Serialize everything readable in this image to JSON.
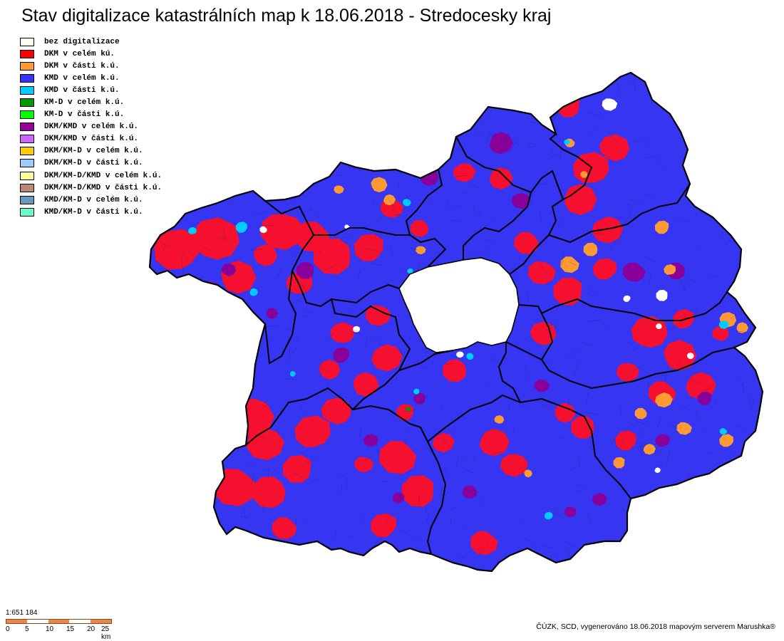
{
  "title": "Stav digitalizace katastrálních map k 18.06.2018 - Stredocesky kraj",
  "legend": [
    {
      "label": "bez digitalizace",
      "color": "#FFFFF0"
    },
    {
      "label": "DKM v celém kú.",
      "color": "#FF0000"
    },
    {
      "label": "DKM v části k.ú.",
      "color": "#FF9933"
    },
    {
      "label": "KMD v celém k.ú.",
      "color": "#3333FF"
    },
    {
      "label": "KMD v části k.ú.",
      "color": "#00CCFF"
    },
    {
      "label": "KM-D v celém k.ú.",
      "color": "#009900"
    },
    {
      "label": "KM-D v části k.ú.",
      "color": "#00FF00"
    },
    {
      "label": "DKM/KMD v celém k.ú.",
      "color": "#990099"
    },
    {
      "label": "DKM/KMD v části k.ú.",
      "color": "#CC66FF"
    },
    {
      "label": "DKM/KM-D v celém k.ú.",
      "color": "#FFCC00"
    },
    {
      "label": "DKM/KM-D v části k.ú.",
      "color": "#99CCFF"
    },
    {
      "label": "DKM/KM-D/KMD v celém k.ú.",
      "color": "#FFFF99"
    },
    {
      "label": "DKM/KM-D/KMD v části k.ú.",
      "color": "#BB8877"
    },
    {
      "label": "KMD/KM-D v celém k.ú.",
      "color": "#6699BB"
    },
    {
      "label": "KMD/KM-D v části k.ú.",
      "color": "#66FFCC"
    }
  ],
  "scale": {
    "ratio": "1:651 184",
    "ticks": [
      "0",
      "5",
      "10",
      "15",
      "20",
      "25 km"
    ],
    "colors": [
      "#E8874A",
      "#FFFFFF"
    ]
  },
  "credit": "ČÚZK, SCD, vygenerováno 18.06.2018 mapovým serverem Marushka®",
  "map_colors": {
    "base": "#3535F2",
    "dkm": "#F5102F",
    "partial_dkm": "#FF9933",
    "mixed": "#880099",
    "kmd_partial": "#00CCFF",
    "none": "#FFFFFF",
    "kmd_full_green": "#009900",
    "border": "#000000"
  }
}
